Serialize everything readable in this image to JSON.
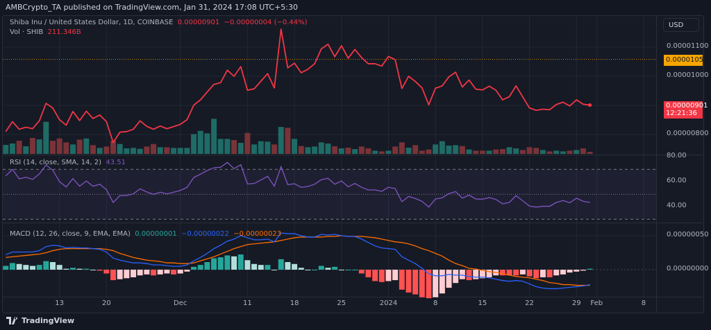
{
  "header": {
    "publish_line": "AMBCrypto_TA published on TradingView.com, Jan 31, 2024 17:08 UTC+5:30"
  },
  "legend": {
    "symbol": "Shiba Inu / United States Dollar, 1D, COINBASE",
    "last": "0.00000901",
    "change": "−0.00000004 (−0.44%)",
    "vol_label": "Vol · SHIB",
    "vol_value": "211.346B",
    "rsi_label": "RSI (14, close, SMA, 14, 2)",
    "rsi_value": "43.51",
    "macd_label": "MACD (12, 26, close, 9, EMA, EMA)",
    "macd_hist": "0.00000001",
    "macd_value": "−0.00000022",
    "macd_signal": "−0.00000023"
  },
  "currency_button": "USD",
  "price_tags": {
    "high_line": "0.00001058",
    "last_price": "0.00000901",
    "countdown": "12:21:36"
  },
  "footer": {
    "logo_text": "TradingView"
  },
  "colors": {
    "price_line": "#f23645",
    "vol_up": "#1f6b66",
    "vol_down": "#7a3338",
    "rsi": "#7e57c2",
    "macd": "#2962ff",
    "signal": "#ff6d00",
    "hist_up_strong": "#26a69a",
    "hist_up_weak": "#b2dfdb",
    "hist_down_strong": "#ff5252",
    "hist_down_weak": "#ffcdd2",
    "high_line": "#f7a600"
  },
  "chart_data": [
    {
      "type": "line",
      "title": "Shiba Inu / United States Dollar, 1D, COINBASE",
      "grid": true,
      "y_ticks": [
        "0.00001100",
        "0.00001000",
        "0.00000800"
      ],
      "ylim": [
        7.6e-06,
        1.2e-05
      ],
      "reference_line": 1.058e-05,
      "x_ticks": [
        {
          "label": "13",
          "date": "2023-11-13"
        },
        {
          "label": "20",
          "date": "2023-11-20"
        },
        {
          "label": "Dec",
          "date": "2023-12-01"
        },
        {
          "label": "11",
          "date": "2023-12-11"
        },
        {
          "label": "18",
          "date": "2023-12-18"
        },
        {
          "label": "25",
          "date": "2023-12-25"
        },
        {
          "label": "2024",
          "date": "2024-01-01"
        },
        {
          "label": "8",
          "date": "2024-01-08"
        },
        {
          "label": "15",
          "date": "2024-01-15"
        },
        {
          "label": "22",
          "date": "2024-01-22"
        },
        {
          "label": "29",
          "date": "2024-01-29"
        },
        {
          "label": "Feb",
          "date": "2024-02-01"
        },
        {
          "label": "8",
          "date": "2024-02-08"
        }
      ],
      "dates": [
        "2023-11-05",
        "2023-11-06",
        "2023-11-07",
        "2023-11-08",
        "2023-11-09",
        "2023-11-10",
        "2023-11-11",
        "2023-11-12",
        "2023-11-13",
        "2023-11-14",
        "2023-11-15",
        "2023-11-16",
        "2023-11-17",
        "2023-11-18",
        "2023-11-19",
        "2023-11-20",
        "2023-11-21",
        "2023-11-22",
        "2023-11-23",
        "2023-11-24",
        "2023-11-25",
        "2023-11-26",
        "2023-11-27",
        "2023-11-28",
        "2023-11-29",
        "2023-11-30",
        "2023-12-01",
        "2023-12-02",
        "2023-12-03",
        "2023-12-04",
        "2023-12-05",
        "2023-12-06",
        "2023-12-07",
        "2023-12-08",
        "2023-12-09",
        "2023-12-10",
        "2023-12-11",
        "2023-12-12",
        "2023-12-13",
        "2023-12-14",
        "2023-12-15",
        "2023-12-16",
        "2023-12-17",
        "2023-12-18",
        "2023-12-19",
        "2023-12-20",
        "2023-12-21",
        "2023-12-22",
        "2023-12-23",
        "2023-12-24",
        "2023-12-25",
        "2023-12-26",
        "2023-12-27",
        "2023-12-28",
        "2023-12-29",
        "2023-12-30",
        "2023-12-31",
        "2024-01-01",
        "2024-01-02",
        "2024-01-03",
        "2024-01-04",
        "2024-01-05",
        "2024-01-06",
        "2024-01-07",
        "2024-01-08",
        "2024-01-09",
        "2024-01-10",
        "2024-01-11",
        "2024-01-12",
        "2024-01-13",
        "2024-01-14",
        "2024-01-15",
        "2024-01-16",
        "2024-01-17",
        "2024-01-18",
        "2024-01-19",
        "2024-01-20",
        "2024-01-21",
        "2024-01-22",
        "2024-01-23",
        "2024-01-24",
        "2024-01-25",
        "2024-01-26",
        "2024-01-27",
        "2024-01-28",
        "2024-01-29",
        "2024-01-30",
        "2024-01-31"
      ],
      "price": [
        8.1e-06,
        8.44e-06,
        8.18e-06,
        8.25e-06,
        8.2e-06,
        8.47e-06,
        9.07e-06,
        8.91e-06,
        8.51e-06,
        8.32e-06,
        8.79e-06,
        8.48e-06,
        8.8e-06,
        8.55e-06,
        8.67e-06,
        8.44e-06,
        7.72e-06,
        8.08e-06,
        8.1e-06,
        8.18e-06,
        8.47e-06,
        8.28e-06,
        8.18e-06,
        8.29e-06,
        8.2e-06,
        8.27e-06,
        8.35e-06,
        8.51e-06,
        9.01e-06,
        9.19e-06,
        9.46e-06,
        9.72e-06,
        9.78e-06,
        1.021e-05,
        1e-05,
        1.033e-05,
        9.52e-06,
        9.57e-06,
        9.83e-06,
        1.009e-05,
        9.6e-06,
        1.162e-05,
        1.029e-05,
        1.045e-05,
        1.012e-05,
        1.024e-05,
        1.043e-05,
        1.094e-05,
        1.11e-05,
        1.067e-05,
        1.105e-05,
        1.062e-05,
        1.092e-05,
        1.064e-05,
        1.043e-05,
        1.043e-05,
        1.035e-05,
        1.068e-05,
        1.057e-05,
        9.58e-06,
        1e-05,
        9.82e-06,
        9.6e-06,
        9.02e-06,
        9.59e-06,
        9.67e-06,
        9.98e-06,
        1.014e-05,
        9.63e-06,
        9.87e-06,
        9.56e-06,
        9.53e-06,
        9.66e-06,
        9.52e-06,
        9.19e-06,
        9.3e-06,
        9.67e-06,
        9.29e-06,
        8.91e-06,
        8.83e-06,
        8.87e-06,
        8.85e-06,
        9.03e-06,
        9.11e-06,
        8.98e-06,
        9.19e-06,
        9.04e-06,
        9.01e-06
      ],
      "volume_billions": [
        909,
        1049,
        1328,
        769,
        1608,
        1468,
        3239,
        1328,
        1561,
        1165,
        955,
        1445,
        1561,
        885,
        606,
        746,
        1328,
        1002,
        559,
        606,
        513,
        746,
        1002,
        676,
        676,
        606,
        606,
        606,
        2004,
        2330,
        2074,
        3542,
        1515,
        1515,
        1398,
        1118,
        2120,
        955,
        1282,
        1235,
        955,
        2726,
        2633,
        1515,
        792,
        676,
        746,
        1165,
        1049,
        769,
        559,
        629,
        489,
        746,
        559,
        326,
        256,
        326,
        746,
        1165,
        629,
        885,
        326,
        443,
        955,
        1282,
        839,
        885,
        792,
        443,
        326,
        326,
        326,
        443,
        489,
        676,
        559,
        396,
        676,
        606,
        396,
        256,
        326,
        256,
        326,
        396,
        559,
        211
      ],
      "volume_direction": [
        "up",
        "up",
        "down",
        "up",
        "down",
        "up",
        "up",
        "down",
        "down",
        "down",
        "up",
        "down",
        "up",
        "down",
        "up",
        "down",
        "down",
        "up",
        "up",
        "up",
        "up",
        "down",
        "down",
        "up",
        "down",
        "up",
        "up",
        "up",
        "up",
        "up",
        "up",
        "up",
        "up",
        "up",
        "down",
        "up",
        "down",
        "up",
        "up",
        "up",
        "down",
        "up",
        "down",
        "up",
        "down",
        "up",
        "up",
        "up",
        "up",
        "down",
        "up",
        "down",
        "up",
        "down",
        "down",
        "up",
        "down",
        "up",
        "down",
        "down",
        "up",
        "down",
        "down",
        "down",
        "up",
        "up",
        "up",
        "up",
        "down",
        "up",
        "down",
        "down",
        "up",
        "down",
        "down",
        "up",
        "up",
        "down",
        "down",
        "down",
        "up",
        "down",
        "up",
        "up",
        "down",
        "up",
        "down",
        "down"
      ]
    },
    {
      "type": "line",
      "title": "RSI (14, close, SMA, 14, 2)",
      "y_ticks": [
        "80.00",
        "60.00",
        "40.00"
      ],
      "ylim": [
        25,
        82
      ],
      "bands": {
        "upper": 70,
        "middle": 50,
        "lower": 30
      },
      "rsi": [
        64.8,
        70.0,
        62.4,
        63.7,
        62.0,
        66.3,
        73.5,
        69.4,
        60.2,
        55.9,
        62.6,
        56.5,
        60.7,
        56.5,
        58.1,
        53.7,
        43.5,
        48.9,
        49.1,
        50.4,
        54.4,
        51.9,
        50.0,
        51.7,
        50.4,
        51.7,
        53.1,
        55.6,
        63.5,
        66.1,
        69.1,
        71.3,
        71.7,
        75.6,
        70.6,
        73.7,
        58.3,
        58.7,
        61.5,
        64.4,
        56.5,
        72.2,
        57.8,
        58.5,
        55.6,
        56.3,
        58.1,
        61.7,
        62.8,
        58.1,
        60.7,
        56.1,
        58.7,
        55.6,
        53.5,
        53.5,
        52.4,
        55.7,
        54.6,
        44.1,
        48.3,
        46.7,
        44.4,
        39.8,
        46.3,
        47.2,
        50.6,
        52.2,
        46.9,
        49.4,
        46.3,
        46.1,
        47.4,
        45.9,
        42.4,
        43.5,
        48.9,
        44.8,
        40.6,
        39.8,
        40.4,
        40.4,
        43.5,
        45.0,
        43.3,
        46.9,
        44.4,
        43.51
      ]
    },
    {
      "type": "line",
      "title": "MACD (12, 26, close, 9, EMA, EMA)",
      "y_ticks": [
        "0.00000050",
        "0.00000000"
      ],
      "ylim": [
        -4.2e-07,
        6.8e-07
      ],
      "macd": [
        2.2e-07,
        2.6e-07,
        2.6e-07,
        2.6e-07,
        2.6e-07,
        2.8e-07,
        3.4e-07,
        3.6e-07,
        3.5e-07,
        3.2e-07,
        3.3e-07,
        3.2e-07,
        3.2e-07,
        3.1e-07,
        3e-07,
        2.6e-07,
        1.7e-07,
        1.4e-07,
        1.2e-07,
        1e-07,
        1e-07,
        9e-08,
        7e-08,
        7e-08,
        6e-08,
        5e-08,
        5e-08,
        7e-08,
        1.3e-07,
        1.8e-07,
        2.4e-07,
        3.1e-07,
        3.6e-07,
        4.2e-07,
        4.5e-07,
        5e-07,
        4.7e-07,
        4.4e-07,
        4.4e-07,
        4.5e-07,
        4.1e-07,
        5.4e-07,
        5.3e-07,
        5.3e-07,
        5e-07,
        4.8e-07,
        4.8e-07,
        5.2e-07,
        5.1e-07,
        5.2e-07,
        5e-07,
        4.9e-07,
        4.9e-07,
        4.5e-07,
        4e-07,
        3.5e-07,
        3.2e-07,
        3.1e-07,
        3e-07,
        1.9e-07,
        1.4e-07,
        9e-08,
        2e-08,
        -6e-08,
        -9e-08,
        -9e-08,
        -7e-08,
        -8e-08,
        -8e-08,
        -1e-07,
        -1.1e-07,
        -1.1e-07,
        -1.2e-07,
        -1.4e-07,
        -1.6e-07,
        -1.7e-07,
        -1.6e-07,
        -1.7e-07,
        -2.1e-07,
        -2.5e-07,
        -2.7e-07,
        -2.8e-07,
        -2.8e-07,
        -2.7e-07,
        -2.6e-07,
        -2.5e-07,
        -2.4e-07,
        -2.2e-07
      ],
      "signal": [
        1.8e-07,
        1.9e-07,
        2e-07,
        2.1e-07,
        2.2e-07,
        2.3e-07,
        2.5e-07,
        2.8e-07,
        3e-07,
        3.1e-07,
        3.1e-07,
        3.1e-07,
        3.1e-07,
        3.1e-07,
        3.1e-07,
        3e-07,
        2.8e-07,
        2.4e-07,
        2.1e-07,
        1.8e-07,
        1.6e-07,
        1.4e-07,
        1.3e-07,
        1.2e-07,
        1e-07,
        1e-07,
        9e-08,
        9e-08,
        1e-07,
        1.3e-07,
        1.6e-07,
        1.9e-07,
        2.3e-07,
        2.7e-07,
        3.1e-07,
        3.4e-07,
        3.7e-07,
        3.8e-07,
        3.9e-07,
        4e-07,
        4.1e-07,
        4.3e-07,
        4.5e-07,
        4.7e-07,
        4.8e-07,
        4.8e-07,
        4.8e-07,
        4.8e-07,
        4.9e-07,
        4.9e-07,
        5e-07,
        4.9e-07,
        4.9e-07,
        4.9e-07,
        4.8e-07,
        4.7e-07,
        4.5e-07,
        4.3e-07,
        4.1e-07,
        4e-07,
        3.8e-07,
        3.5e-07,
        3.1e-07,
        2.8e-07,
        2.4e-07,
        2e-07,
        1.4e-07,
        9e-08,
        6e-08,
        2e-08,
        1e-08,
        -1e-08,
        -3e-08,
        -4e-08,
        -6e-08,
        -8e-08,
        -1e-07,
        -1.1e-07,
        -1.2e-07,
        -1.4e-07,
        -1.6e-07,
        -1.9e-07,
        -2e-07,
        -2.2e-07,
        -2.2e-07,
        -2.3e-07,
        -2.3e-07,
        -2.3e-07
      ],
      "histogram": [
        4e-08,
        7e-08,
        6e-08,
        5e-08,
        4e-08,
        5e-08,
        9e-08,
        8e-08,
        5e-08,
        1e-08,
        2e-08,
        1e-08,
        1e-08,
        0,
        -1e-08,
        -4e-08,
        -1.1e-07,
        -1e-07,
        -9e-08,
        -8e-08,
        -6e-08,
        -5e-08,
        -6e-08,
        -5e-08,
        -4e-08,
        -5e-08,
        -4e-08,
        -2e-08,
        3e-08,
        5e-08,
        8e-08,
        1.2e-07,
        1.3e-07,
        1.5e-07,
        1.4e-07,
        1.6e-07,
        1e-07,
        6e-08,
        5e-08,
        5e-08,
        0,
        1.1e-07,
        8e-08,
        6e-08,
        2e-08,
        0,
        0,
        4e-08,
        2e-08,
        3e-08,
        0,
        0,
        0,
        -4e-08,
        -8e-08,
        -1.2e-07,
        -1.3e-07,
        -1.2e-07,
        -1.1e-07,
        -2.1e-07,
        -2.4e-07,
        -2.6e-07,
        -2.9e-07,
        -3e-07,
        -2.9e-07,
        -2.5e-07,
        -1.9e-07,
        -1.4e-07,
        -1e-07,
        -1.1e-07,
        -1e-07,
        -9e-08,
        -8e-08,
        -6e-08,
        -6e-08,
        -6e-08,
        -6e-08,
        -5e-08,
        -7e-08,
        -9e-08,
        -8e-08,
        -8e-08,
        -6e-08,
        -5e-08,
        -3e-08,
        -2e-08,
        -1e-08,
        1e-08
      ]
    }
  ]
}
